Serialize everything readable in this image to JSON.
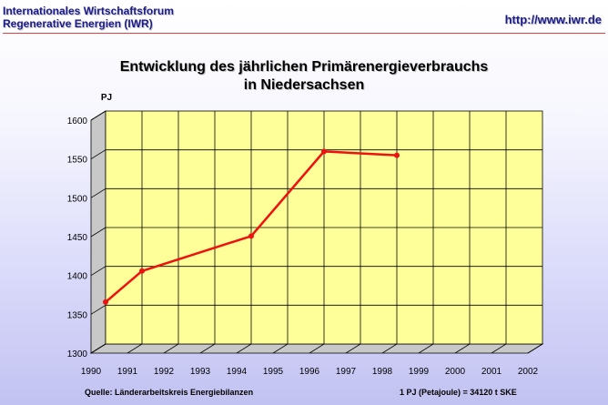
{
  "header": {
    "org_line1": "Internationales Wirtschaftsforum",
    "org_line2": "Regenerative Energien (IWR)",
    "url": "http://www.iwr.de"
  },
  "footer": {
    "source": "Quelle: Länderarbeitskreis Energiebilanzen",
    "unit_note": "1 PJ (Petajoule) = 34120 t SKE"
  },
  "colors": {
    "header_text": "#1a1a8c",
    "header_rule": "#e04040",
    "plot_face": "#ffff99",
    "plot_side": "#c8c8c8",
    "series_line": "#ee1111"
  },
  "chart_data": {
    "type": "line",
    "title_line1": "Entwicklung des jährlichen Primärenergieverbrauchs",
    "title_line2": "in Niedersachsen",
    "ylabel": "PJ",
    "xlabel": "",
    "x_categories": [
      "1990",
      "1991",
      "1992",
      "1993",
      "1994",
      "1995",
      "1996",
      "1997",
      "1998",
      "1999",
      "2000",
      "2001",
      "2002"
    ],
    "y_ticks": [
      1300,
      1350,
      1400,
      1450,
      1500,
      1550,
      1600
    ],
    "ylim": [
      1300,
      1600
    ],
    "grid": true,
    "series": [
      {
        "x": [
          "1990",
          "1991",
          "1994",
          "1996",
          "1998"
        ],
        "y": [
          1354,
          1394,
          1439,
          1548,
          1543
        ]
      }
    ]
  }
}
